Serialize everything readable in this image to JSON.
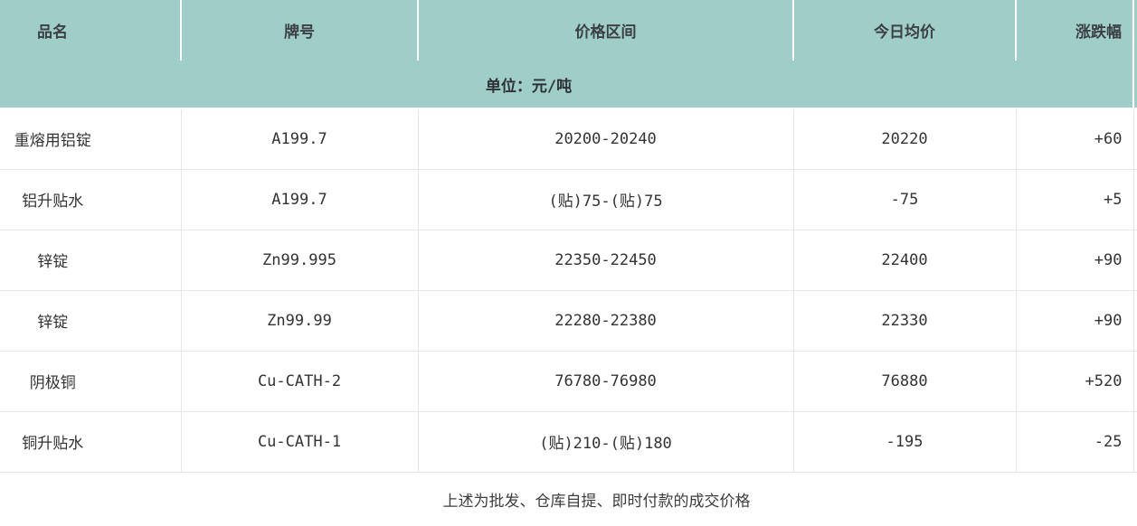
{
  "unit_label": "单位：元/吨",
  "colors": {
    "header_bg": "#9fcec9",
    "separator_white": "#ffffff",
    "grid_border": "#e6e6e6",
    "text": "#333333"
  },
  "table": {
    "columns": [
      {
        "label": "品名"
      },
      {
        "label": "牌号"
      },
      {
        "label": "价格区间"
      },
      {
        "label": "今日均价"
      },
      {
        "label": "涨跌幅"
      }
    ],
    "rows": [
      {
        "cells": [
          "重熔用铝锭",
          "A199.7",
          "20200-20240",
          "20220",
          "+60"
        ]
      },
      {
        "cells": [
          "铝升贴水",
          "A199.7",
          "(贴)75-(贴)75",
          "-75",
          "+5"
        ]
      },
      {
        "cells": [
          "锌锭",
          "Zn99.995",
          "22350-22450",
          "22400",
          "+90"
        ]
      },
      {
        "cells": [
          "锌锭",
          "Zn99.99",
          "22280-22380",
          "22330",
          "+90"
        ]
      },
      {
        "cells": [
          "阴极铜",
          "Cu-CATH-2",
          "76780-76980",
          "76880",
          "+520"
        ]
      },
      {
        "cells": [
          "铜升贴水",
          "Cu-CATH-1",
          "(贴)210-(贴)180",
          "-195",
          "-25"
        ]
      }
    ]
  },
  "footnote": "上述为批发、仓库自提、即时付款的成交价格"
}
